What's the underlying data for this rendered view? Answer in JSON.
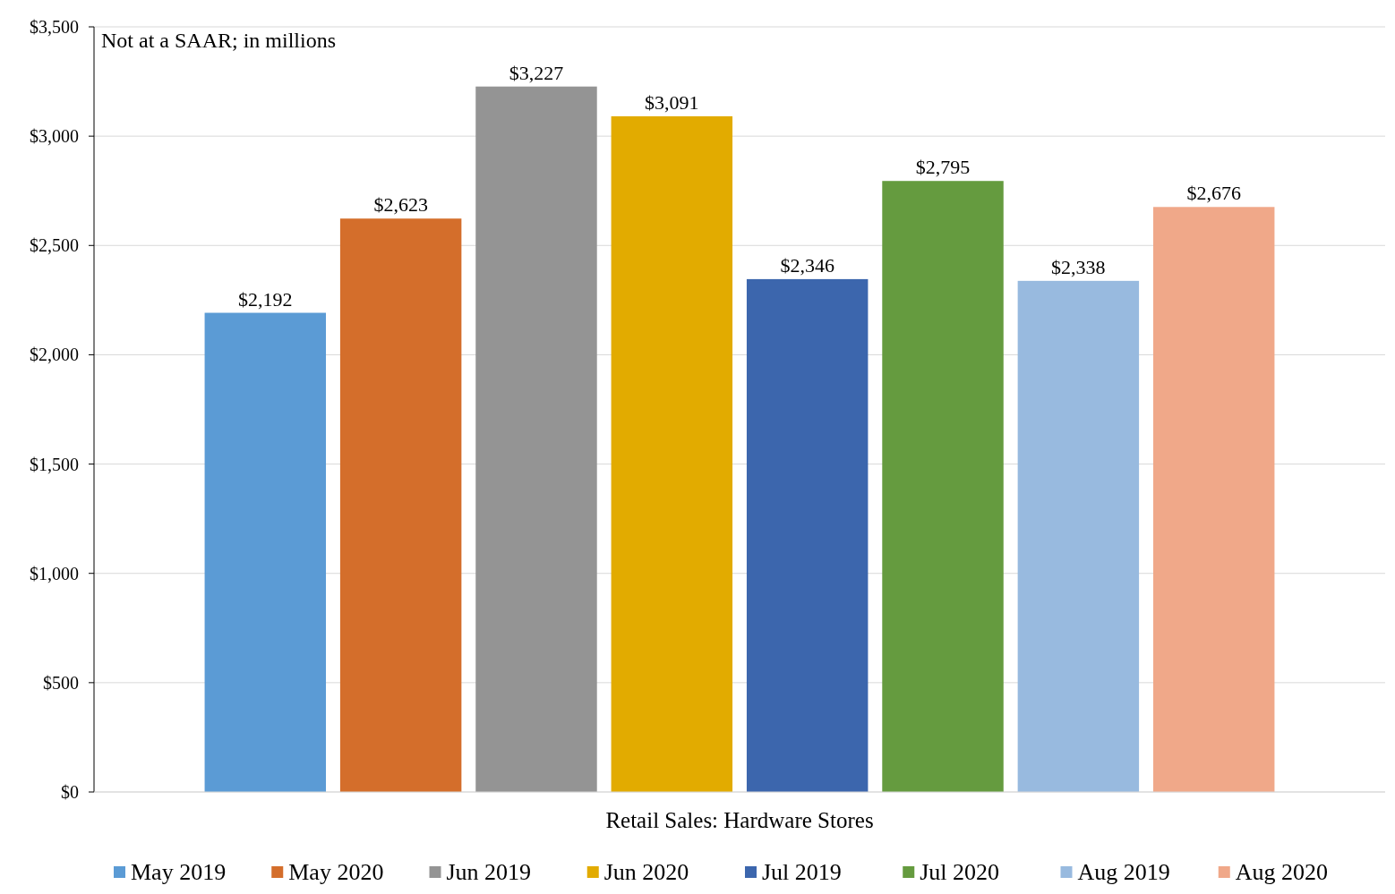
{
  "chart_data": {
    "type": "bar",
    "categories": [
      "Retail Sales: Hardware Stores"
    ],
    "series": [
      {
        "name": "May 2019",
        "color": "#5b9bd5",
        "values": [
          2192
        ],
        "value_labels": [
          "$2,192"
        ]
      },
      {
        "name": "May 2020",
        "color": "#d46e2b",
        "values": [
          2623
        ],
        "value_labels": [
          "$2,623"
        ]
      },
      {
        "name": "Jun 2019",
        "color": "#949494",
        "values": [
          3227
        ],
        "value_labels": [
          "$3,227"
        ]
      },
      {
        "name": "Jun 2020",
        "color": "#e2ab00",
        "values": [
          3091
        ],
        "value_labels": [
          "$3,091"
        ]
      },
      {
        "name": "Jul 2019",
        "color": "#3c66ad",
        "values": [
          2346
        ],
        "value_labels": [
          "$2,346"
        ]
      },
      {
        "name": "Jul 2020",
        "color": "#659b3f",
        "values": [
          2795
        ],
        "value_labels": [
          "$2,795"
        ]
      },
      {
        "name": "Aug 2019",
        "color": "#98badf",
        "values": [
          2338
        ],
        "value_labels": [
          "$2,338"
        ]
      },
      {
        "name": "Aug 2020",
        "color": "#f0a889",
        "values": [
          2676
        ],
        "value_labels": [
          "$2,676"
        ]
      }
    ],
    "ylim": [
      0,
      3500
    ],
    "yticks": [
      {
        "value": 0,
        "label": "$0"
      },
      {
        "value": 500,
        "label": "$500"
      },
      {
        "value": 1000,
        "label": "$1,000"
      },
      {
        "value": 1500,
        "label": "$1,500"
      },
      {
        "value": 2000,
        "label": "$2,000"
      },
      {
        "value": 2500,
        "label": "$2,500"
      },
      {
        "value": 3000,
        "label": "$3,000"
      },
      {
        "value": 3500,
        "label": "$3,500"
      }
    ],
    "grid": "y",
    "legend": "bottom",
    "annotations": [
      "Not at a SAAR; in millions"
    ]
  }
}
